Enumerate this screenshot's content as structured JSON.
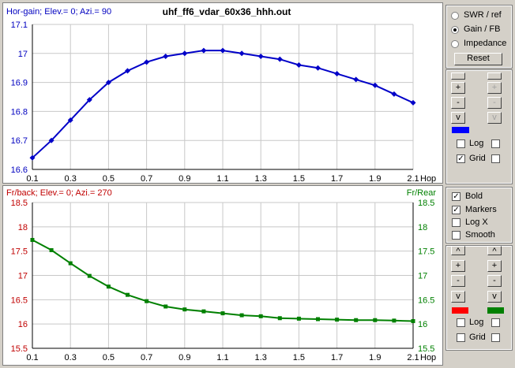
{
  "top": {
    "header_left": "Hor-gain; Elev.= 0; Azi.= 90",
    "title": "uhf_ff6_vdar_60x36_hhh.out"
  },
  "bottom": {
    "header_left": "Fr/back; Elev.= 0; Azi.= 270",
    "header_right": "Fr/Rear"
  },
  "controls": {
    "radios": [
      {
        "label": "SWR / ref",
        "selected": false
      },
      {
        "label": "Gain / FB",
        "selected": true
      },
      {
        "label": "Impedance",
        "selected": false
      }
    ],
    "reset_label": "Reset",
    "top_buttons_left": [
      "",
      "+",
      "-",
      "v"
    ],
    "top_buttons_right": [
      "",
      "+",
      "-",
      "v"
    ],
    "top_log_label": "Log",
    "top_grid_label": "Grid",
    "top_log_checked": false,
    "top_grid_checked": true,
    "top_swatch_color": "#0000ff",
    "options": [
      {
        "label": "Bold",
        "checked": true
      },
      {
        "label": "Markers",
        "checked": true
      },
      {
        "label": "Log X",
        "checked": false
      },
      {
        "label": "Smooth",
        "checked": false
      }
    ],
    "bottom_buttons_left": [
      "^",
      "+",
      "-",
      "v"
    ],
    "bottom_buttons_right": [
      "^",
      "+",
      "-",
      "v"
    ],
    "bottom_log_label": "Log",
    "bottom_grid_label": "Grid",
    "bottom_swatch_left": "#ff0000",
    "bottom_swatch_right": "#008000",
    "check_mark": "✓"
  },
  "chart_data": [
    {
      "type": "line",
      "title": "uhf_ff6_vdar_60x36_hhh.out",
      "xlabel": "Hop",
      "ylabel": "",
      "xlim": [
        0.1,
        2.1
      ],
      "ylim": [
        16.6,
        17.1
      ],
      "x_ticks": [
        "0.1",
        "0.3",
        "0.5",
        "0.7",
        "0.9",
        "1.1",
        "1.3",
        "1.5",
        "1.7",
        "1.9",
        "2.1"
      ],
      "y_ticks": [
        "16.6",
        "16.7",
        "16.8",
        "16.9",
        "17",
        "17.1"
      ],
      "grid": true,
      "color": "#0000c8",
      "x": [
        0.1,
        0.2,
        0.3,
        0.4,
        0.5,
        0.6,
        0.7,
        0.8,
        0.9,
        1.0,
        1.1,
        1.2,
        1.3,
        1.4,
        1.5,
        1.6,
        1.7,
        1.8,
        1.9,
        2.0,
        2.1
      ],
      "series": [
        {
          "values": [
            16.64,
            16.7,
            16.77,
            16.84,
            16.9,
            16.94,
            16.97,
            16.99,
            17.0,
            17.01,
            17.01,
            17.0,
            16.99,
            16.98,
            16.96,
            16.95,
            16.93,
            16.91,
            16.89,
            16.86,
            16.83
          ]
        }
      ]
    },
    {
      "type": "line",
      "title": "",
      "xlabel": "Hop",
      "ylabel": "",
      "xlim": [
        0.1,
        2.1
      ],
      "ylim": [
        15.5,
        18.5
      ],
      "x_ticks": [
        "0.1",
        "0.3",
        "0.5",
        "0.7",
        "0.9",
        "1.1",
        "1.3",
        "1.5",
        "1.7",
        "1.9",
        "2.1"
      ],
      "y_ticks": [
        "15.5",
        "16",
        "16.5",
        "17",
        "17.5",
        "18",
        "18.5"
      ],
      "y_ticks_right": [
        "15.5",
        "16",
        "16.5",
        "17",
        "17.5",
        "18",
        "18.5"
      ],
      "left_axis_color": "#c00000",
      "right_axis_color": "#008000",
      "grid": true,
      "color": "#008000",
      "x": [
        0.1,
        0.2,
        0.3,
        0.4,
        0.5,
        0.6,
        0.7,
        0.8,
        0.9,
        1.0,
        1.1,
        1.2,
        1.3,
        1.4,
        1.5,
        1.6,
        1.7,
        1.8,
        1.9,
        2.0,
        2.1
      ],
      "series": [
        {
          "values": [
            17.73,
            17.52,
            17.25,
            16.99,
            16.77,
            16.6,
            16.47,
            16.36,
            16.3,
            16.26,
            16.22,
            16.18,
            16.16,
            16.12,
            16.11,
            16.1,
            16.09,
            16.08,
            16.08,
            16.07,
            16.06
          ]
        }
      ]
    }
  ]
}
